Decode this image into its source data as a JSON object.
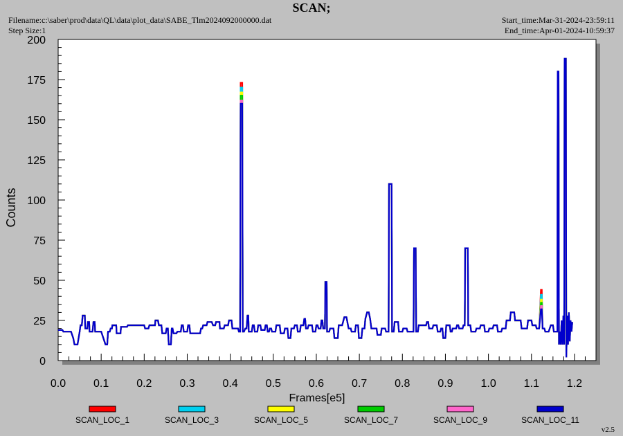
{
  "header": {
    "title": "SCAN;",
    "filename": "Filename:c:\\saber\\prod\\data\\QL\\data\\plot_data\\SABE_Tlm2024092000000.dat",
    "step_size": "Step Size:1",
    "start_time": "Start_time:Mar-31-2024-23:59:11",
    "end_time": "End_time:Apr-01-2024-10:59:37",
    "version": "v2.5"
  },
  "chart_data": {
    "type": "line",
    "title": "SCAN;",
    "xlabel": "Frames[e5]",
    "ylabel": "Counts",
    "xlim": [
      0.0,
      1.25
    ],
    "ylim": [
      0,
      200
    ],
    "x_ticks": [
      "0.0",
      "0.1",
      "0.2",
      "0.3",
      "0.4",
      "0.5",
      "0.6",
      "0.7",
      "0.8",
      "0.9",
      "1.0",
      "1.1",
      "1.2"
    ],
    "y_ticks": [
      "0",
      "25",
      "50",
      "75",
      "100",
      "125",
      "150",
      "175",
      "200"
    ],
    "legend_position": "bottom",
    "series": [
      {
        "name": "SCAN_LOC_1",
        "color": "#ff0000",
        "spike1": 173,
        "spike2": 44
      },
      {
        "name": "SCAN_LOC_3",
        "color": "#00d0f0",
        "spike1": 170,
        "spike2": 41
      },
      {
        "name": "SCAN_LOC_5",
        "color": "#ffff00",
        "spike1": 167,
        "spike2": 38
      },
      {
        "name": "SCAN_LOC_7",
        "color": "#00cc00",
        "spike1": 165,
        "spike2": 36
      },
      {
        "name": "SCAN_LOC_9",
        "color": "#ff66cc",
        "spike1": 162,
        "spike2": 34
      },
      {
        "name": "SCAN_LOC_11",
        "color": "#0000cc",
        "spike1": 160,
        "spike2": 32
      }
    ],
    "base_points": [
      [
        0.0,
        19
      ],
      [
        0.01,
        19
      ],
      [
        0.012,
        18
      ],
      [
        0.03,
        18
      ],
      [
        0.035,
        14
      ],
      [
        0.038,
        10
      ],
      [
        0.045,
        10
      ],
      [
        0.05,
        18
      ],
      [
        0.052,
        22
      ],
      [
        0.055,
        22
      ],
      [
        0.057,
        28
      ],
      [
        0.062,
        28
      ],
      [
        0.063,
        20
      ],
      [
        0.068,
        20
      ],
      [
        0.069,
        24
      ],
      [
        0.072,
        24
      ],
      [
        0.073,
        18
      ],
      [
        0.08,
        18
      ],
      [
        0.082,
        24
      ],
      [
        0.085,
        24
      ],
      [
        0.086,
        18
      ],
      [
        0.1,
        18
      ],
      [
        0.105,
        14
      ],
      [
        0.11,
        10
      ],
      [
        0.114,
        10
      ],
      [
        0.116,
        18
      ],
      [
        0.12,
        18
      ],
      [
        0.122,
        20
      ],
      [
        0.125,
        20
      ],
      [
        0.126,
        22
      ],
      [
        0.135,
        22
      ],
      [
        0.136,
        17
      ],
      [
        0.145,
        17
      ],
      [
        0.146,
        21
      ],
      [
        0.16,
        21
      ],
      [
        0.162,
        22
      ],
      [
        0.18,
        22
      ],
      [
        0.182,
        22
      ],
      [
        0.2,
        22
      ],
      [
        0.202,
        20
      ],
      [
        0.21,
        20
      ],
      [
        0.212,
        22
      ],
      [
        0.225,
        22
      ],
      [
        0.226,
        25
      ],
      [
        0.232,
        25
      ],
      [
        0.234,
        22
      ],
      [
        0.24,
        22
      ],
      [
        0.242,
        17
      ],
      [
        0.25,
        17
      ],
      [
        0.252,
        20
      ],
      [
        0.255,
        20
      ],
      [
        0.257,
        10
      ],
      [
        0.262,
        10
      ],
      [
        0.264,
        20
      ],
      [
        0.266,
        20
      ],
      [
        0.268,
        17
      ],
      [
        0.275,
        17
      ],
      [
        0.277,
        18
      ],
      [
        0.285,
        18
      ],
      [
        0.287,
        22
      ],
      [
        0.29,
        22
      ],
      [
        0.292,
        18
      ],
      [
        0.3,
        18
      ],
      [
        0.302,
        22
      ],
      [
        0.305,
        22
      ],
      [
        0.307,
        17
      ],
      [
        0.33,
        17
      ],
      [
        0.332,
        20
      ],
      [
        0.335,
        20
      ],
      [
        0.337,
        22
      ],
      [
        0.345,
        22
      ],
      [
        0.347,
        24
      ],
      [
        0.355,
        24
      ],
      [
        0.357,
        24
      ],
      [
        0.36,
        22
      ],
      [
        0.365,
        22
      ],
      [
        0.367,
        24
      ],
      [
        0.375,
        24
      ],
      [
        0.376,
        20
      ],
      [
        0.385,
        20
      ],
      [
        0.387,
        22
      ],
      [
        0.395,
        22
      ],
      [
        0.397,
        25
      ],
      [
        0.403,
        25
      ],
      [
        0.405,
        20
      ],
      [
        0.41,
        20
      ],
      [
        0.412,
        20
      ],
      [
        0.418,
        20
      ],
      [
        0.42,
        18
      ],
      [
        0.423,
        18
      ],
      [
        0.424,
        160
      ],
      [
        0.428,
        160
      ],
      [
        0.429,
        18
      ],
      [
        0.432,
        18
      ],
      [
        0.435,
        20
      ],
      [
        0.438,
        20
      ],
      [
        0.44,
        28
      ],
      [
        0.442,
        28
      ],
      [
        0.443,
        18
      ],
      [
        0.45,
        18
      ],
      [
        0.452,
        22
      ],
      [
        0.455,
        22
      ],
      [
        0.457,
        18
      ],
      [
        0.463,
        18
      ],
      [
        0.465,
        22
      ],
      [
        0.47,
        22
      ],
      [
        0.472,
        19
      ],
      [
        0.48,
        19
      ],
      [
        0.482,
        22
      ],
      [
        0.485,
        22
      ],
      [
        0.487,
        18
      ],
      [
        0.49,
        18
      ],
      [
        0.492,
        20
      ],
      [
        0.495,
        20
      ],
      [
        0.497,
        18
      ],
      [
        0.505,
        18
      ],
      [
        0.507,
        22
      ],
      [
        0.515,
        22
      ],
      [
        0.517,
        17
      ],
      [
        0.525,
        17
      ],
      [
        0.527,
        20
      ],
      [
        0.533,
        20
      ],
      [
        0.535,
        14
      ],
      [
        0.54,
        14
      ],
      [
        0.542,
        20
      ],
      [
        0.548,
        20
      ],
      [
        0.55,
        22
      ],
      [
        0.555,
        22
      ],
      [
        0.557,
        18
      ],
      [
        0.562,
        18
      ],
      [
        0.564,
        22
      ],
      [
        0.57,
        22
      ],
      [
        0.572,
        26
      ],
      [
        0.574,
        26
      ],
      [
        0.576,
        20
      ],
      [
        0.58,
        20
      ],
      [
        0.582,
        22
      ],
      [
        0.59,
        22
      ],
      [
        0.592,
        18
      ],
      [
        0.598,
        18
      ],
      [
        0.6,
        22
      ],
      [
        0.603,
        22
      ],
      [
        0.605,
        20
      ],
      [
        0.61,
        20
      ],
      [
        0.612,
        25
      ],
      [
        0.614,
        25
      ],
      [
        0.616,
        20
      ],
      [
        0.62,
        20
      ],
      [
        0.621,
        49
      ],
      [
        0.624,
        49
      ],
      [
        0.625,
        18
      ],
      [
        0.63,
        18
      ],
      [
        0.632,
        20
      ],
      [
        0.64,
        20
      ],
      [
        0.642,
        14
      ],
      [
        0.65,
        14
      ],
      [
        0.652,
        22
      ],
      [
        0.66,
        22
      ],
      [
        0.665,
        27
      ],
      [
        0.67,
        27
      ],
      [
        0.675,
        20
      ],
      [
        0.68,
        20
      ],
      [
        0.682,
        18
      ],
      [
        0.69,
        18
      ],
      [
        0.692,
        22
      ],
      [
        0.697,
        22
      ],
      [
        0.699,
        14
      ],
      [
        0.705,
        14
      ],
      [
        0.707,
        20
      ],
      [
        0.712,
        20
      ],
      [
        0.714,
        26
      ],
      [
        0.718,
        30
      ],
      [
        0.722,
        30
      ],
      [
        0.725,
        26
      ],
      [
        0.728,
        20
      ],
      [
        0.74,
        20
      ],
      [
        0.742,
        16
      ],
      [
        0.75,
        16
      ],
      [
        0.752,
        20
      ],
      [
        0.76,
        20
      ],
      [
        0.762,
        18
      ],
      [
        0.768,
        18
      ],
      [
        0.769,
        110
      ],
      [
        0.775,
        110
      ],
      [
        0.776,
        18
      ],
      [
        0.78,
        18
      ],
      [
        0.782,
        24
      ],
      [
        0.79,
        24
      ],
      [
        0.792,
        18
      ],
      [
        0.8,
        18
      ],
      [
        0.802,
        20
      ],
      [
        0.81,
        20
      ],
      [
        0.812,
        18
      ],
      [
        0.826,
        18
      ],
      [
        0.827,
        70
      ],
      [
        0.831,
        70
      ],
      [
        0.832,
        18
      ],
      [
        0.836,
        18
      ],
      [
        0.838,
        22
      ],
      [
        0.845,
        22
      ],
      [
        0.847,
        22
      ],
      [
        0.855,
        22
      ],
      [
        0.857,
        24
      ],
      [
        0.86,
        24
      ],
      [
        0.862,
        20
      ],
      [
        0.87,
        20
      ],
      [
        0.872,
        22
      ],
      [
        0.88,
        22
      ],
      [
        0.882,
        18
      ],
      [
        0.888,
        18
      ],
      [
        0.89,
        20
      ],
      [
        0.893,
        20
      ],
      [
        0.895,
        14
      ],
      [
        0.9,
        14
      ],
      [
        0.902,
        22
      ],
      [
        0.91,
        22
      ],
      [
        0.912,
        18
      ],
      [
        0.915,
        18
      ],
      [
        0.917,
        20
      ],
      [
        0.925,
        20
      ],
      [
        0.927,
        22
      ],
      [
        0.93,
        22
      ],
      [
        0.932,
        20
      ],
      [
        0.94,
        20
      ],
      [
        0.942,
        22
      ],
      [
        0.945,
        22
      ],
      [
        0.946,
        70
      ],
      [
        0.952,
        70
      ],
      [
        0.953,
        22
      ],
      [
        0.958,
        22
      ],
      [
        0.96,
        18
      ],
      [
        0.97,
        18
      ],
      [
        0.972,
        20
      ],
      [
        0.98,
        20
      ],
      [
        0.982,
        22
      ],
      [
        0.99,
        22
      ],
      [
        0.992,
        18
      ],
      [
        1.0,
        18
      ],
      [
        1.002,
        20
      ],
      [
        1.01,
        20
      ],
      [
        1.012,
        22
      ],
      [
        1.02,
        22
      ],
      [
        1.022,
        18
      ],
      [
        1.03,
        18
      ],
      [
        1.032,
        20
      ],
      [
        1.04,
        20
      ],
      [
        1.042,
        25
      ],
      [
        1.05,
        25
      ],
      [
        1.052,
        30
      ],
      [
        1.06,
        30
      ],
      [
        1.062,
        25
      ],
      [
        1.075,
        25
      ],
      [
        1.077,
        20
      ],
      [
        1.09,
        20
      ],
      [
        1.092,
        25
      ],
      [
        1.1,
        25
      ],
      [
        1.102,
        22
      ],
      [
        1.11,
        22
      ],
      [
        1.112,
        20
      ],
      [
        1.118,
        20
      ],
      [
        1.122,
        32
      ],
      [
        1.124,
        32
      ],
      [
        1.126,
        20
      ],
      [
        1.13,
        20
      ],
      [
        1.132,
        18
      ],
      [
        1.14,
        18
      ],
      [
        1.145,
        22
      ],
      [
        1.15,
        22
      ],
      [
        1.152,
        18
      ],
      [
        1.16,
        18
      ],
      [
        1.161,
        180
      ],
      [
        1.163,
        180
      ],
      [
        1.164,
        10
      ],
      [
        1.166,
        18
      ],
      [
        1.168,
        10
      ],
      [
        1.17,
        25
      ],
      [
        1.172,
        10
      ],
      [
        1.174,
        28
      ],
      [
        1.176,
        10
      ],
      [
        1.177,
        188
      ],
      [
        1.18,
        188
      ],
      [
        1.181,
        2
      ],
      [
        1.183,
        28
      ],
      [
        1.185,
        10
      ],
      [
        1.187,
        30
      ],
      [
        1.189,
        12
      ],
      [
        1.191,
        25
      ],
      [
        1.193,
        18
      ],
      [
        1.195,
        24
      ]
    ]
  }
}
